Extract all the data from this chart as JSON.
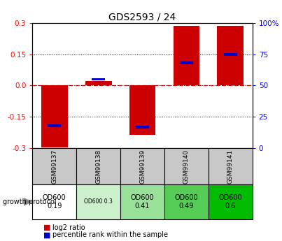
{
  "title": "GDS2593 / 24",
  "samples": [
    "GSM99137",
    "GSM99138",
    "GSM99139",
    "GSM99140",
    "GSM99141"
  ],
  "log2_ratio": [
    -0.295,
    0.02,
    -0.235,
    0.285,
    0.285
  ],
  "percentile_rank": [
    18,
    55,
    17,
    68,
    75
  ],
  "ylim": [
    -0.3,
    0.3
  ],
  "y2lim": [
    0,
    100
  ],
  "yticks_left": [
    -0.3,
    -0.15,
    0.0,
    0.15,
    0.3
  ],
  "yticks_right": [
    0,
    25,
    50,
    75,
    100
  ],
  "bar_color": "#cc0000",
  "pct_color": "#0000cc",
  "zero_line_color": "#cc0000",
  "grid_color": "#000000",
  "sample_bg": "#c8c8c8",
  "protocol_labels": [
    "OD600\n0.19",
    "OD600 0.3",
    "OD600\n0.41",
    "OD600\n0.49",
    "OD600\n0.6"
  ],
  "protocol_bg": [
    "#ffffff",
    "#ccf0cc",
    "#99e099",
    "#55cc55",
    "#00bb00"
  ],
  "protocol_small": [
    false,
    true,
    false,
    false,
    false
  ],
  "legend_bar": "log2 ratio",
  "legend_pct": "percentile rank within the sample",
  "growth_protocol_label": "growth protocol"
}
